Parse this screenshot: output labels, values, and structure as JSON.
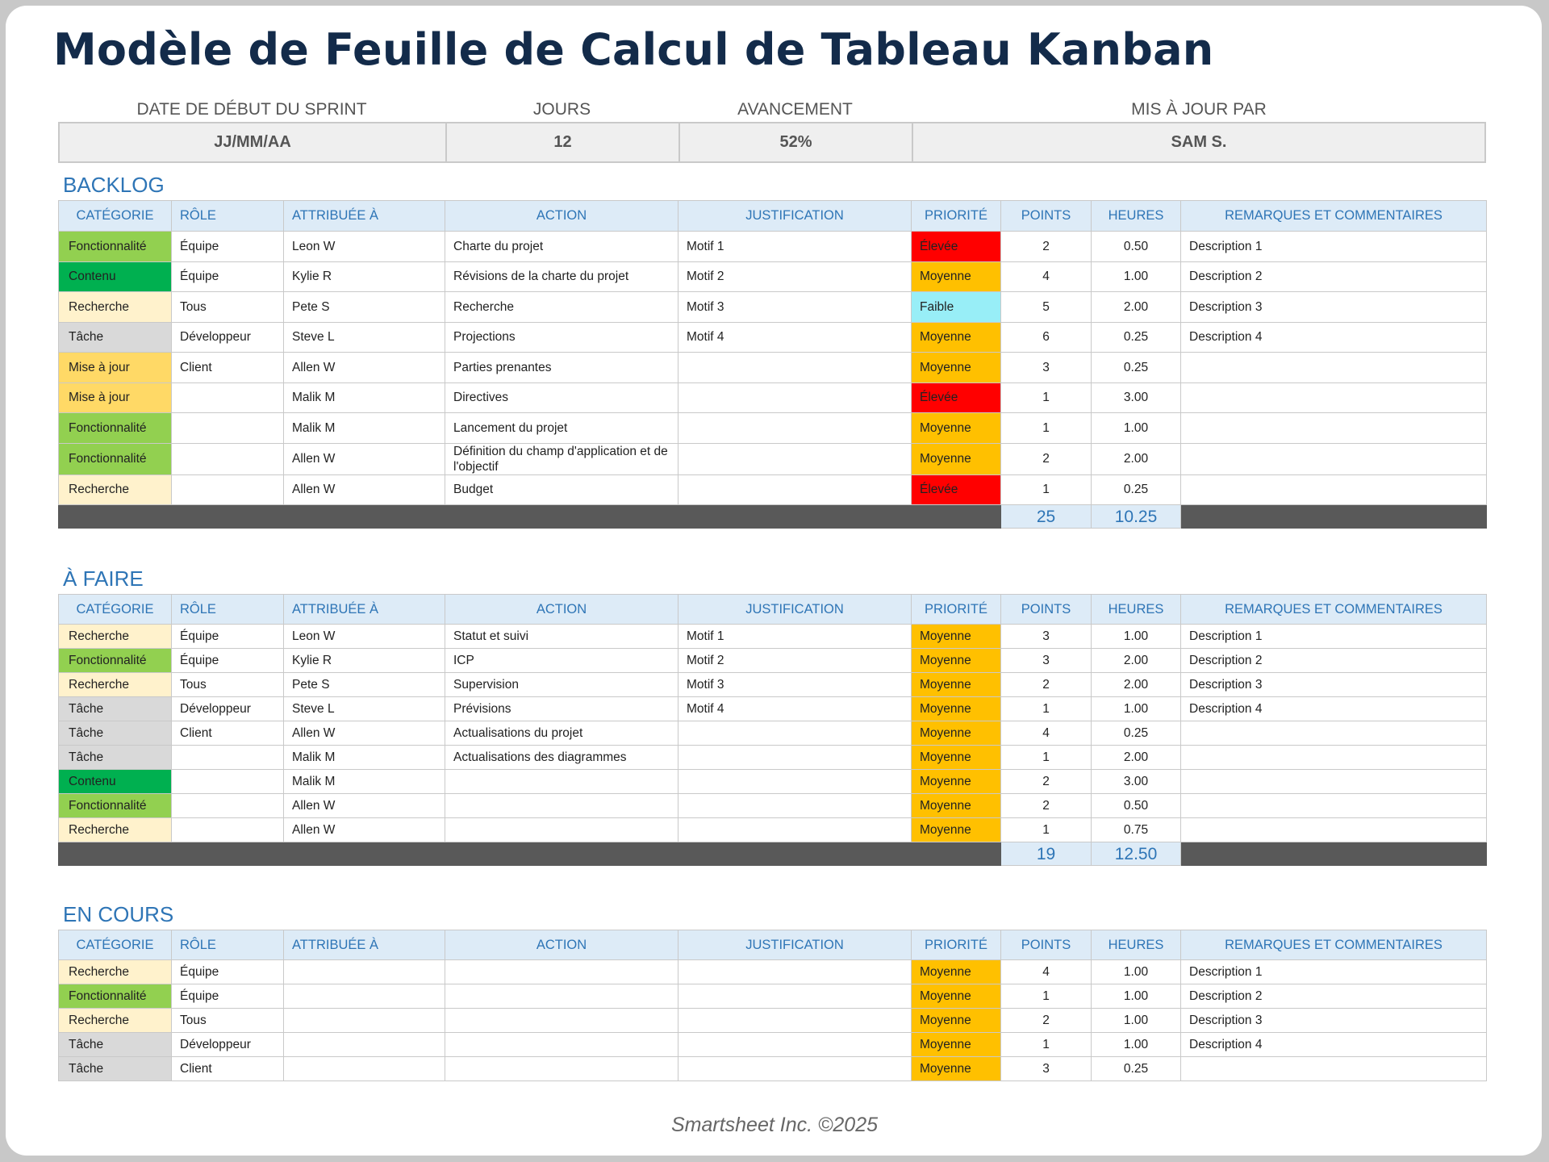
{
  "title": "Modèle de Feuille de Calcul de Tableau Kanban",
  "summary": {
    "labels": {
      "start_date": "DATE DE DÉBUT DU SPRINT",
      "days": "JOURS",
      "progress": "AVANCEMENT",
      "updated_by": "MIS À JOUR PAR"
    },
    "values": {
      "start_date": "JJ/MM/AA",
      "days": "12",
      "progress": "52%",
      "updated_by": "SAM S."
    }
  },
  "columns": [
    "CATÉGORIE",
    "RÔLE",
    "ATTRIBUÉE À",
    "ACTION",
    "JUSTIFICATION",
    "PRIORITÉ",
    "POINTS",
    "HEURES",
    "REMARQUES ET COMMENTAIRES"
  ],
  "colors": {
    "Fonctionnalité": "#92D050",
    "Contenu": "#00B050",
    "Recherche": "#FFF2CC",
    "Tâche": "#D9D9D9",
    "Mise à jour": "#FFD966",
    "Élevée": "#FF0000",
    "Moyenne": "#FFC000",
    "Faible": "#98EEF7",
    "header_bg": "#DDEBF7",
    "header_text": "#2E75B6",
    "total_bar": "#595959",
    "title": "#132B4A"
  },
  "sections": {
    "backlog": {
      "title": "BACKLOG",
      "rows": [
        {
          "category": "Fonctionnalité",
          "role": "Équipe",
          "assigned": "Leon W",
          "action": "Charte du projet",
          "justification": "Motif 1",
          "priority": "Élevée",
          "points": "2",
          "hours": "0.50",
          "notes": "Description 1"
        },
        {
          "category": "Contenu",
          "role": "Équipe",
          "assigned": "Kylie R",
          "action": "Révisions de la charte du projet",
          "justification": "Motif 2",
          "priority": "Moyenne",
          "points": "4",
          "hours": "1.00",
          "notes": "Description 2"
        },
        {
          "category": "Recherche",
          "role": "Tous",
          "assigned": "Pete S",
          "action": "Recherche",
          "justification": "Motif 3",
          "priority": "Faible",
          "points": "5",
          "hours": "2.00",
          "notes": "Description 3"
        },
        {
          "category": "Tâche",
          "role": "Développeur",
          "assigned": "Steve L",
          "action": "Projections",
          "justification": "Motif 4",
          "priority": "Moyenne",
          "points": "6",
          "hours": "0.25",
          "notes": "Description 4"
        },
        {
          "category": "Mise à jour",
          "role": "Client",
          "assigned": "Allen W",
          "action": "Parties prenantes",
          "justification": "",
          "priority": "Moyenne",
          "points": "3",
          "hours": "0.25",
          "notes": ""
        },
        {
          "category": "Mise à jour",
          "role": "",
          "assigned": "Malik M",
          "action": "Directives",
          "justification": "",
          "priority": "Élevée",
          "points": "1",
          "hours": "3.00",
          "notes": ""
        },
        {
          "category": "Fonctionnalité",
          "role": "",
          "assigned": "Malik M",
          "action": "Lancement du projet",
          "justification": "",
          "priority": "Moyenne",
          "points": "1",
          "hours": "1.00",
          "notes": ""
        },
        {
          "category": "Fonctionnalité",
          "role": "",
          "assigned": "Allen W",
          "action": "Définition du champ d'application et de l'objectif",
          "justification": "",
          "priority": "Moyenne",
          "points": "2",
          "hours": "2.00",
          "notes": ""
        },
        {
          "category": "Recherche",
          "role": "",
          "assigned": "Allen W",
          "action": "Budget",
          "justification": "",
          "priority": "Élevée",
          "points": "1",
          "hours": "0.25",
          "notes": ""
        }
      ],
      "total_points": "25",
      "total_hours": "10.25"
    },
    "todo": {
      "title": "À FAIRE",
      "rows": [
        {
          "category": "Recherche",
          "role": "Équipe",
          "assigned": "Leon W",
          "action": "Statut et suivi",
          "justification": "Motif 1",
          "priority": "Moyenne",
          "points": "3",
          "hours": "1.00",
          "notes": "Description 1"
        },
        {
          "category": "Fonctionnalité",
          "role": "Équipe",
          "assigned": "Kylie R",
          "action": "ICP",
          "justification": "Motif 2",
          "priority": "Moyenne",
          "points": "3",
          "hours": "2.00",
          "notes": "Description 2"
        },
        {
          "category": "Recherche",
          "role": "Tous",
          "assigned": "Pete S",
          "action": "Supervision",
          "justification": "Motif 3",
          "priority": "Moyenne",
          "points": "2",
          "hours": "2.00",
          "notes": "Description 3"
        },
        {
          "category": "Tâche",
          "role": "Développeur",
          "assigned": "Steve L",
          "action": "Prévisions",
          "justification": "Motif 4",
          "priority": "Moyenne",
          "points": "1",
          "hours": "1.00",
          "notes": "Description 4"
        },
        {
          "category": "Tâche",
          "role": "Client",
          "assigned": "Allen W",
          "action": "Actualisations du projet",
          "justification": "",
          "priority": "Moyenne",
          "points": "4",
          "hours": "0.25",
          "notes": ""
        },
        {
          "category": "Tâche",
          "role": "",
          "assigned": "Malik M",
          "action": "Actualisations des diagrammes",
          "justification": "",
          "priority": "Moyenne",
          "points": "1",
          "hours": "2.00",
          "notes": ""
        },
        {
          "category": "Contenu",
          "role": "",
          "assigned": "Malik M",
          "action": "",
          "justification": "",
          "priority": "Moyenne",
          "points": "2",
          "hours": "3.00",
          "notes": ""
        },
        {
          "category": "Fonctionnalité",
          "role": "",
          "assigned": "Allen W",
          "action": "",
          "justification": "",
          "priority": "Moyenne",
          "points": "2",
          "hours": "0.50",
          "notes": ""
        },
        {
          "category": "Recherche",
          "role": "",
          "assigned": "Allen W",
          "action": "",
          "justification": "",
          "priority": "Moyenne",
          "points": "1",
          "hours": "0.75",
          "notes": ""
        }
      ],
      "total_points": "19",
      "total_hours": "12.50"
    },
    "in_progress": {
      "title": "EN COURS",
      "rows": [
        {
          "category": "Recherche",
          "role": "Équipe",
          "assigned": "",
          "action": "",
          "justification": "",
          "priority": "Moyenne",
          "points": "4",
          "hours": "1.00",
          "notes": "Description 1"
        },
        {
          "category": "Fonctionnalité",
          "role": "Équipe",
          "assigned": "",
          "action": "",
          "justification": "",
          "priority": "Moyenne",
          "points": "1",
          "hours": "1.00",
          "notes": "Description 2"
        },
        {
          "category": "Recherche",
          "role": "Tous",
          "assigned": "",
          "action": "",
          "justification": "",
          "priority": "Moyenne",
          "points": "2",
          "hours": "1.00",
          "notes": "Description 3"
        },
        {
          "category": "Tâche",
          "role": "Développeur",
          "assigned": "",
          "action": "",
          "justification": "",
          "priority": "Moyenne",
          "points": "1",
          "hours": "1.00",
          "notes": "Description 4"
        },
        {
          "category": "Tâche",
          "role": "Client",
          "assigned": "",
          "action": "",
          "justification": "",
          "priority": "Moyenne",
          "points": "3",
          "hours": "0.25",
          "notes": ""
        }
      ]
    }
  },
  "footer": "Smartsheet Inc. ©2025"
}
